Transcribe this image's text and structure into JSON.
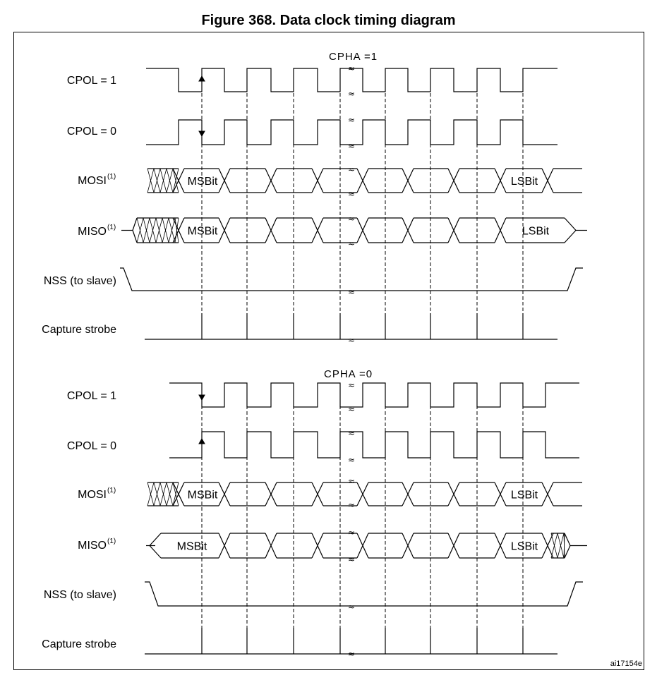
{
  "figure": {
    "title": "Figure 368. Data clock timing diagram",
    "reference": "ai17154e"
  },
  "sections": [
    {
      "caption": "CPHA =1",
      "rows": {
        "cpol1": "CPOL = 1",
        "cpol0": "CPOL = 0",
        "mosi": "MOSI",
        "miso": "MISO",
        "nss": "NSS (to slave)",
        "capture": "Capture strobe"
      },
      "note_mark": "(1)",
      "msb": "MSBit",
      "lsb": "LSBit"
    },
    {
      "caption": "CPHA =0",
      "rows": {
        "cpol1": "CPOL = 1",
        "cpol0": "CPOL = 0",
        "mosi": "MOSI",
        "miso": "MISO",
        "nss": "NSS (to slave)",
        "capture": "Capture strobe"
      },
      "note_mark": "(1)",
      "msb": "MSBit",
      "lsb": "LSBit"
    }
  ],
  "break_mark": "≈"
}
